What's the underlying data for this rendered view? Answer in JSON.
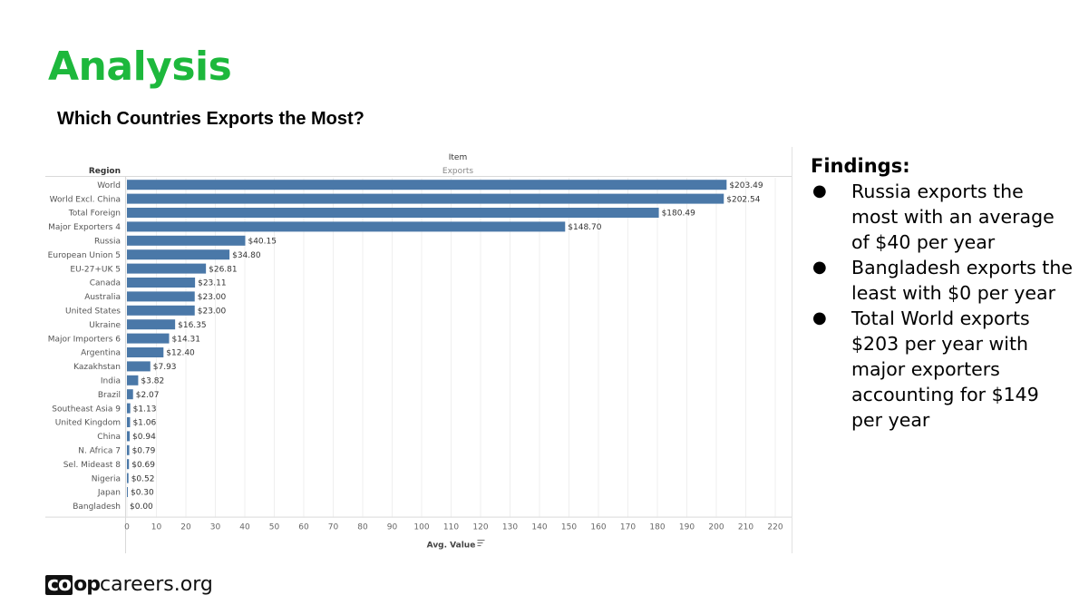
{
  "slide": {
    "title": "Analysis",
    "subtitle": "Which Countries Exports the Most?",
    "logo": {
      "part1": "co",
      "part2": "op",
      "part3": "careers.org"
    }
  },
  "findings": {
    "heading": "Findings:",
    "bullet_glyph": "●",
    "items": [
      "Russia exports the most with an average of $40 per year",
      "Bangladesh exports the least with $0 per year",
      "Total World exports $203 per year with major exporters accounting for $149 per year"
    ]
  },
  "chart_data": {
    "type": "bar",
    "orientation": "horizontal",
    "column_header_top": "Item",
    "column_header": "Exports",
    "row_header": "Region",
    "xlabel": "Avg. Value",
    "sort_icon": "sort-descending-icon",
    "bar_color": "#4a78a8",
    "grid": true,
    "xlim": [
      0,
      220
    ],
    "xticks": [
      0,
      10,
      20,
      30,
      40,
      50,
      60,
      70,
      80,
      90,
      100,
      110,
      120,
      130,
      140,
      150,
      160,
      170,
      180,
      190,
      200,
      210,
      220
    ],
    "categories": [
      "World",
      "World Excl. China",
      "Total Foreign",
      "Major Exporters 4",
      "Russia",
      "European Union 5",
      "EU-27+UK 5",
      "Canada",
      "Australia",
      "United States",
      "Ukraine",
      "Major Importers 6",
      "Argentina",
      "Kazakhstan",
      "India",
      "Brazil",
      "Southeast Asia 9",
      "United Kingdom",
      "China",
      "N. Africa 7",
      "Sel. Mideast 8",
      "Nigeria",
      "Japan",
      "Bangladesh"
    ],
    "values": [
      203.49,
      202.54,
      180.49,
      148.7,
      40.15,
      34.8,
      26.81,
      23.11,
      23.0,
      23.0,
      16.35,
      14.31,
      12.4,
      7.93,
      3.82,
      2.07,
      1.13,
      1.06,
      0.94,
      0.79,
      0.69,
      0.52,
      0.3,
      0.0
    ],
    "value_labels": [
      "$203.49",
      "$202.54",
      "$180.49",
      "$148.70",
      "$40.15",
      "$34.80",
      "$26.81",
      "$23.11",
      "$23.00",
      "$23.00",
      "$16.35",
      "$14.31",
      "$12.40",
      "$7.93",
      "$3.82",
      "$2.07",
      "$1.13",
      "$1.06",
      "$0.94",
      "$0.79",
      "$0.69",
      "$0.52",
      "$0.30",
      "$0.00"
    ]
  }
}
